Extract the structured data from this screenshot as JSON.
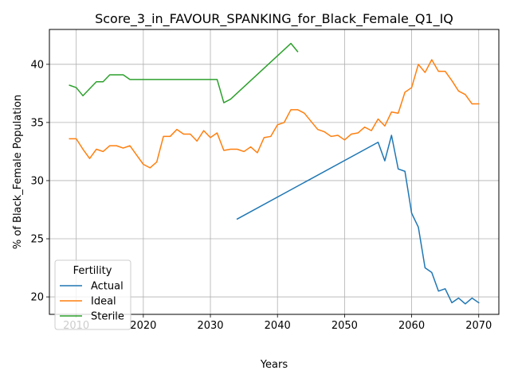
{
  "chart_data": {
    "type": "line",
    "title": "Score_3_in_FAVOUR_SPANKING_for_Black_Female_Q1_IQ",
    "xlabel": "Years",
    "ylabel": "% of Black_Female Population",
    "xlim": [
      2006,
      2073
    ],
    "ylim": [
      18.5,
      43
    ],
    "xticks": [
      2010,
      2020,
      2030,
      2040,
      2050,
      2060,
      2070
    ],
    "yticks": [
      20,
      25,
      30,
      35,
      40
    ],
    "grid": true,
    "legend": {
      "title": "Fertility",
      "position": "lower-left"
    },
    "series": [
      {
        "name": "Actual",
        "color": "#1f77b4",
        "x": [
          2034,
          2055,
          2056,
          2057,
          2058,
          2059,
          2060,
          2061,
          2062,
          2063,
          2064,
          2065,
          2066,
          2067,
          2068,
          2069,
          2070
        ],
        "y": [
          26.7,
          33.3,
          31.7,
          33.9,
          31.0,
          30.8,
          27.2,
          26.0,
          22.5,
          22.1,
          20.5,
          20.7,
          19.5,
          19.9,
          19.4,
          19.9,
          19.5
        ]
      },
      {
        "name": "Ideal",
        "color": "#ff7f0e",
        "x": [
          2009,
          2010,
          2011,
          2012,
          2013,
          2014,
          2015,
          2016,
          2017,
          2018,
          2019,
          2020,
          2021,
          2022,
          2023,
          2024,
          2025,
          2026,
          2027,
          2028,
          2029,
          2030,
          2031,
          2032,
          2033,
          2034,
          2035,
          2036,
          2037,
          2038,
          2039,
          2040,
          2041,
          2042,
          2043,
          2044,
          2045,
          2046,
          2047,
          2048,
          2049,
          2050,
          2051,
          2052,
          2053,
          2054,
          2055,
          2056,
          2057,
          2058,
          2059,
          2060,
          2061,
          2062,
          2063,
          2064,
          2065,
          2066,
          2067,
          2068,
          2069,
          2070
        ],
        "y": [
          33.6,
          33.6,
          32.7,
          31.9,
          32.7,
          32.5,
          33.0,
          33.0,
          32.8,
          33.0,
          32.2,
          31.4,
          31.1,
          31.6,
          33.8,
          33.8,
          34.4,
          34.0,
          34.0,
          33.4,
          34.3,
          33.7,
          34.1,
          32.6,
          32.7,
          32.7,
          32.5,
          32.9,
          32.4,
          33.7,
          33.8,
          34.8,
          35.0,
          36.1,
          36.1,
          35.8,
          35.1,
          34.4,
          34.2,
          33.8,
          33.9,
          33.5,
          34.0,
          34.1,
          34.6,
          34.3,
          35.3,
          34.7,
          35.9,
          35.8,
          37.6,
          38.0,
          40.0,
          39.3,
          40.4,
          39.4,
          39.4,
          38.6,
          37.7,
          37.4,
          36.6,
          36.6
        ]
      },
      {
        "name": "Sterile",
        "color": "#2ca02c",
        "x": [
          2009,
          2010,
          2011,
          2012,
          2013,
          2014,
          2015,
          2016,
          2017,
          2018,
          2019,
          2020,
          2021,
          2022,
          2023,
          2024,
          2025,
          2026,
          2027,
          2028,
          2029,
          2030,
          2031,
          2032,
          2033,
          2042,
          2043
        ],
        "y": [
          38.2,
          38.0,
          37.3,
          37.9,
          38.5,
          38.5,
          39.1,
          39.1,
          39.1,
          38.7,
          38.7,
          38.7,
          38.7,
          38.7,
          38.7,
          38.7,
          38.7,
          38.7,
          38.7,
          38.7,
          38.7,
          38.7,
          38.7,
          36.7,
          37.0,
          41.8,
          41.1
        ]
      }
    ]
  }
}
